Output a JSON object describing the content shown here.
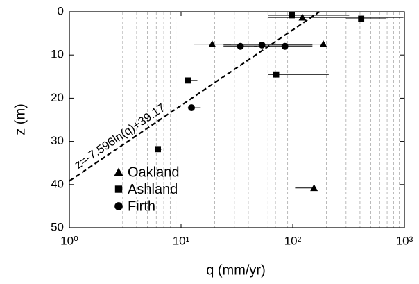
{
  "chart_data": {
    "type": "scatter",
    "xlabel": "q (mm/yr)",
    "ylabel": "z (m)",
    "xscale": "log",
    "xlim": [
      1,
      1000
    ],
    "xticks": [
      {
        "value": 1,
        "label": "10⁰"
      },
      {
        "value": 10,
        "label": "10¹"
      },
      {
        "value": 100,
        "label": "10²"
      },
      {
        "value": 1000,
        "label": "10³"
      }
    ],
    "ylim": [
      0,
      50
    ],
    "yticks": [
      0,
      10,
      20,
      30,
      40,
      50
    ],
    "y_inverted": true,
    "minor_grid": true,
    "series": [
      {
        "name": "Oakland",
        "marker": "triangle",
        "color": "#000",
        "x": [
          19,
          188,
          122,
          155
        ],
        "y": [
          7.5,
          7.5,
          1.3,
          40.8
        ],
        "x_lo": [
          13,
          60,
          60,
          105
        ],
        "x_hi": [
          28,
          205,
          980,
          160
        ]
      },
      {
        "name": "Ashland",
        "marker": "square",
        "color": "#000",
        "x": [
          98,
          410,
          11.5,
          71,
          6.2
        ],
        "y": [
          0.8,
          1.6,
          15.9,
          14.5,
          31.8
        ],
        "x_lo": [
          60,
          300,
          11,
          60,
          5.8
        ],
        "x_hi": [
          320,
          680,
          14,
          210,
          6.7
        ]
      },
      {
        "name": "Firth",
        "marker": "circle",
        "color": "#000",
        "x": [
          34,
          53,
          85,
          12.4
        ],
        "y": [
          8.0,
          7.7,
          8.0,
          22.2
        ],
        "x_lo": [
          24,
          24,
          45,
          11.5
        ],
        "x_hi": [
          48,
          150,
          150,
          15
        ]
      }
    ],
    "fit": {
      "x": [
        1,
        173.6
      ],
      "y": [
        39.17,
        0
      ],
      "label": "z=-7.596ln(q)+39.17"
    },
    "legend": "lower-left"
  }
}
